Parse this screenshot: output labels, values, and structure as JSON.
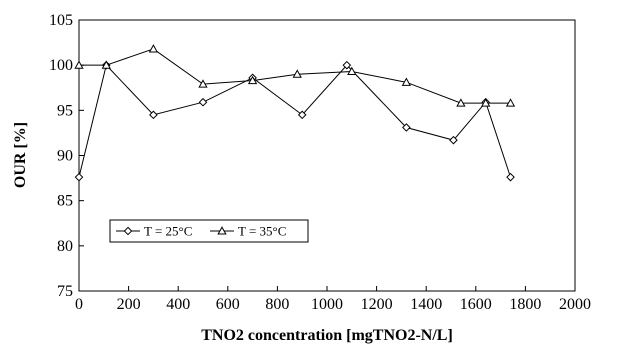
{
  "chart_data": {
    "type": "line",
    "title": "",
    "xlabel": "TNO2 concentration [mgTNO2-N/L]",
    "ylabel": "OUR [%]",
    "xlim": [
      0,
      2000
    ],
    "ylim": [
      75,
      105
    ],
    "xticks": [
      0,
      200,
      400,
      600,
      800,
      1000,
      1200,
      1400,
      1600,
      1800,
      2000
    ],
    "yticks": [
      75,
      80,
      85,
      90,
      95,
      100,
      105
    ],
    "grid": false,
    "legend_position": "lower-left",
    "series": [
      {
        "name": "T = 25°C",
        "marker": "diamond",
        "color": "#000000",
        "x": [
          0,
          110,
          300,
          500,
          700,
          900,
          1080,
          1320,
          1510,
          1640,
          1740
        ],
        "y": [
          87.6,
          100.0,
          94.5,
          95.9,
          98.6,
          94.5,
          100.0,
          93.1,
          91.7,
          95.9,
          87.6
        ]
      },
      {
        "name": "T = 35°C",
        "marker": "triangle",
        "color": "#000000",
        "x": [
          0,
          110,
          300,
          500,
          700,
          880,
          1100,
          1320,
          1540,
          1640,
          1740
        ],
        "y": [
          100.0,
          100.0,
          101.8,
          97.9,
          98.3,
          99.0,
          99.3,
          98.1,
          95.8,
          95.8,
          95.8
        ]
      }
    ]
  }
}
